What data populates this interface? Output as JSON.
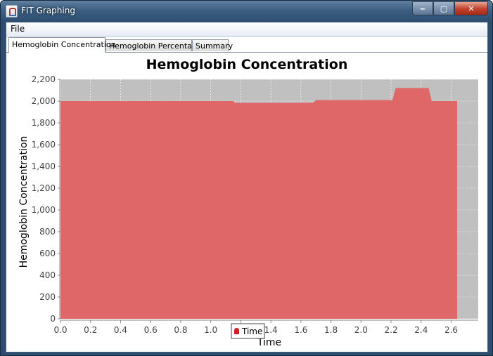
{
  "window": {
    "title": "FIT Graphing",
    "controls": {
      "minimize": "‒",
      "maximize": "▢",
      "close": "✕"
    }
  },
  "menu": {
    "items": [
      "File"
    ]
  },
  "tabs": [
    {
      "label": "Hemoglobin Concentration",
      "active": true
    },
    {
      "label": "Hemoglobin Percentage",
      "active": false
    },
    {
      "label": "Summary",
      "active": false
    }
  ],
  "colors": {
    "area": "#e06464",
    "plot_background": "#c0c0c0",
    "gridline": "#ffffff"
  },
  "chart_data": {
    "type": "area",
    "title": "Hemoglobin Concentration",
    "xlabel": "Time",
    "ylabel": "Hemoglobin Concentration",
    "xlim": [
      0,
      2.78
    ],
    "ylim": [
      0,
      2200
    ],
    "x_ticks": [
      "0.0",
      "0.2",
      "0.4",
      "0.6",
      "0.8",
      "1.0",
      "1.2",
      "1.4",
      "1.6",
      "1.8",
      "2.0",
      "2.2",
      "2.4",
      "2.6"
    ],
    "y_ticks": [
      "0",
      "200",
      "400",
      "600",
      "800",
      "1,000",
      "1,200",
      "1,400",
      "1,600",
      "1,800",
      "2,000",
      "2,200"
    ],
    "legend": {
      "placement": "bottom",
      "entries": [
        "Time"
      ]
    },
    "series": [
      {
        "name": "Time",
        "x": [
          0.0,
          1.15,
          1.16,
          1.68,
          1.7,
          2.21,
          2.23,
          2.45,
          2.47,
          2.64
        ],
        "y": [
          2000,
          2000,
          1985,
          1985,
          2010,
          2010,
          2120,
          2120,
          2000,
          2000
        ]
      }
    ]
  }
}
